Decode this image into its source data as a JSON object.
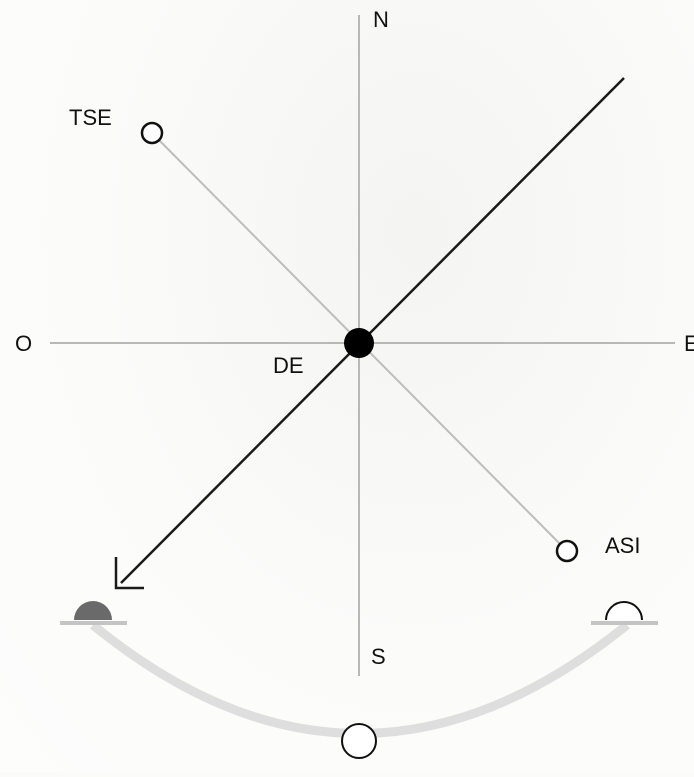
{
  "labels": {
    "north": "N",
    "south": "S",
    "west": "O",
    "east": "E",
    "center": "DE",
    "upper_left": "TSE",
    "lower_right": "ASI"
  },
  "colors": {
    "axis": "#b8b8b8",
    "diagonal": "#bdbdbd",
    "arrow": "#1a1a1a",
    "center_dot": "#000000",
    "arc": "#dedede",
    "filled_dome": "#6a6a6a",
    "text": "#111111"
  }
}
